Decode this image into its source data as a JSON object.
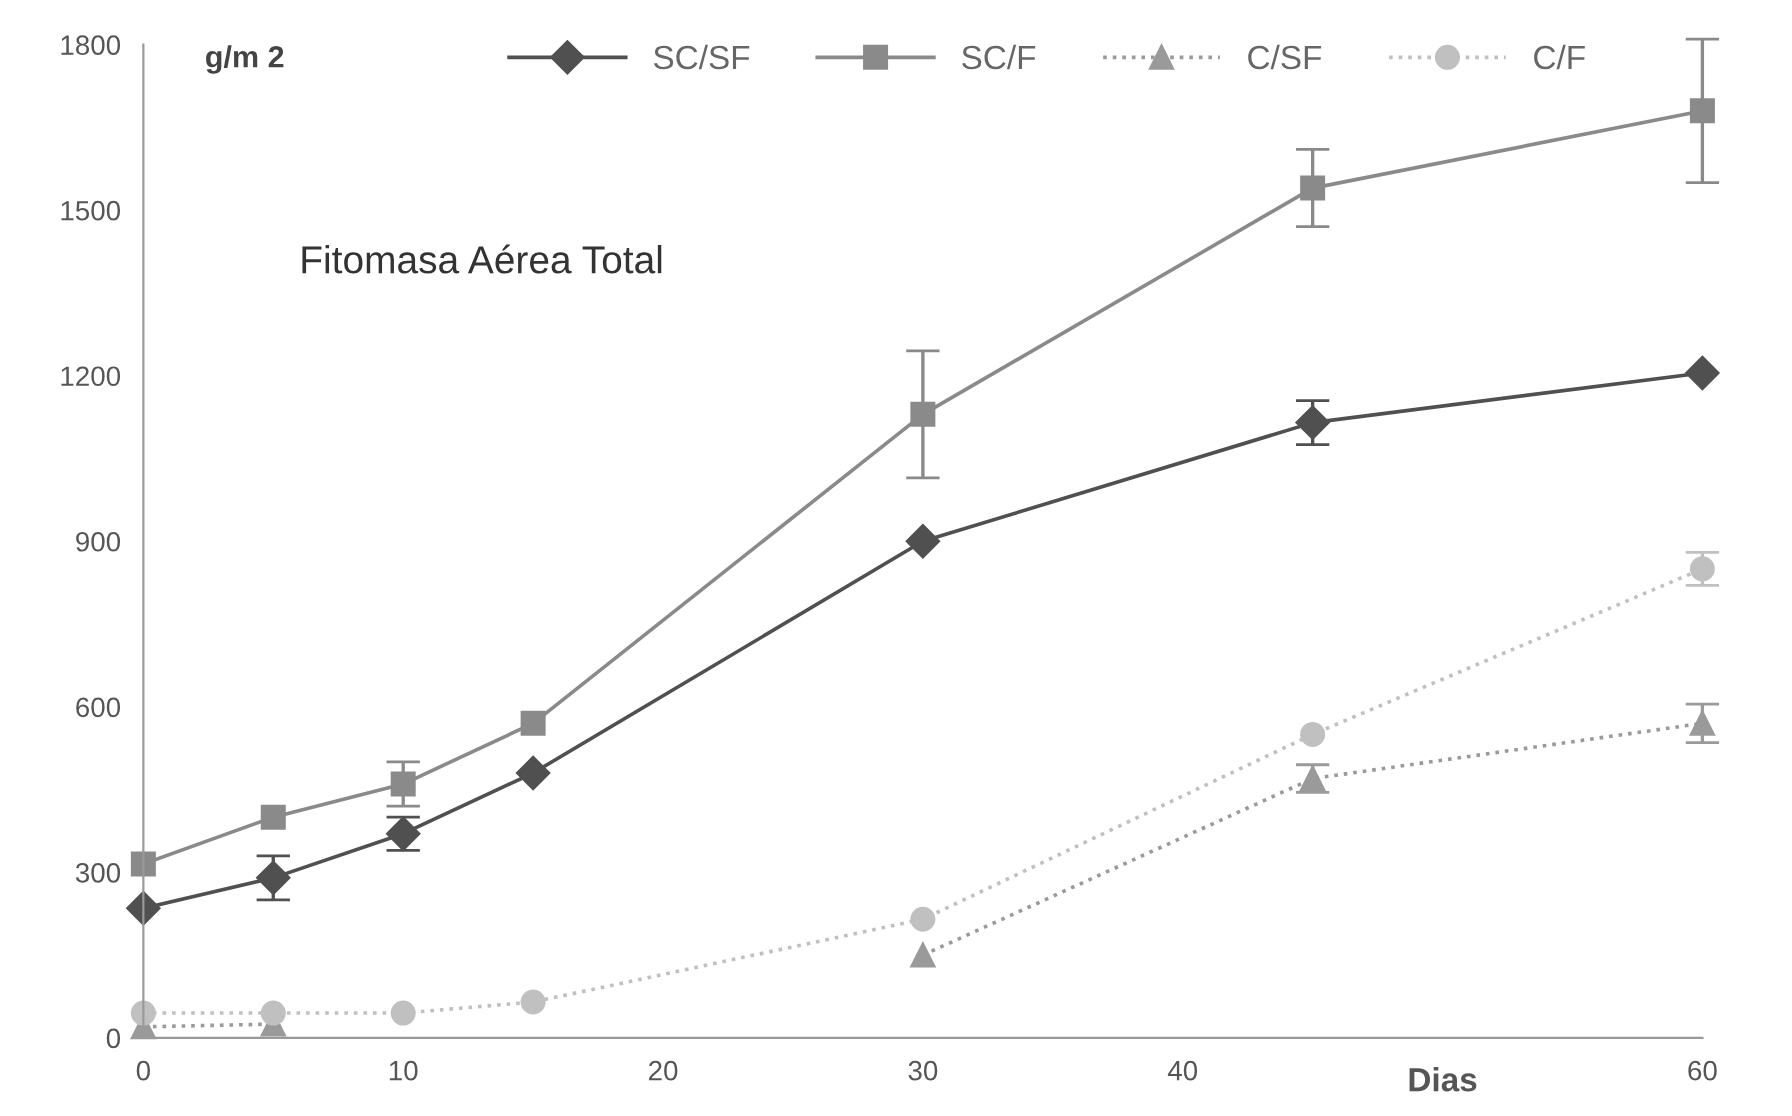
{
  "chart_data": {
    "type": "line",
    "title": "Fitomasa Aérea Total",
    "ylabel": "g/m 2",
    "xlabel": "Dias",
    "x": [
      0,
      5,
      10,
      15,
      30,
      45,
      60
    ],
    "series": [
      {
        "name": "SC/SF",
        "color": "#505050",
        "marker": "diamond",
        "line_style": "solid",
        "values": [
          235,
          290,
          370,
          480,
          900,
          1115,
          1205
        ],
        "errors": [
          null,
          40,
          30,
          null,
          null,
          40,
          null
        ]
      },
      {
        "name": "SC/F",
        "color": "#8a8a8a",
        "marker": "square",
        "line_style": "solid",
        "values": [
          315,
          400,
          460,
          570,
          1130,
          1540,
          1680
        ],
        "errors": [
          null,
          null,
          40,
          null,
          115,
          70,
          130
        ]
      },
      {
        "name": "C/SF",
        "color": "#9a9a9a",
        "marker": "triangle",
        "line_style": "dotted",
        "values": [
          20,
          25,
          null,
          null,
          150,
          470,
          570
        ],
        "errors": [
          null,
          null,
          null,
          null,
          null,
          25,
          35
        ]
      },
      {
        "name": "C/F",
        "color": "#c0c0c0",
        "marker": "circle",
        "line_style": "dotted",
        "values": [
          45,
          45,
          45,
          65,
          215,
          550,
          850
        ],
        "errors": [
          null,
          null,
          null,
          null,
          null,
          null,
          30
        ]
      }
    ],
    "xlim": [
      0,
      60
    ],
    "xticks": [
      0,
      10,
      20,
      30,
      40,
      60
    ],
    "ylim": [
      0,
      1800
    ],
    "yticks": [
      0,
      300,
      600,
      900,
      1200,
      1500,
      1800
    ],
    "grid": false,
    "legend": "top"
  }
}
